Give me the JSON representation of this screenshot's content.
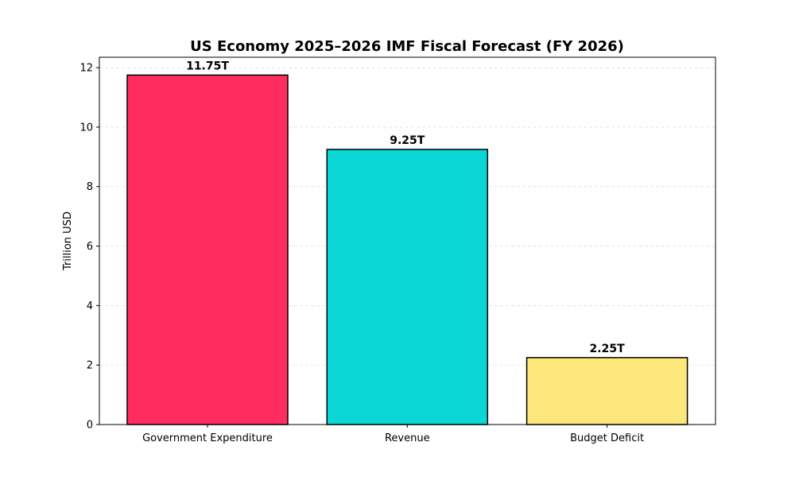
{
  "chart_data": {
    "type": "bar",
    "title": "US Economy 2025–2026 IMF Fiscal Forecast (FY 2026)",
    "xlabel": "",
    "ylabel": "Trillion USD",
    "categories": [
      "Government Expenditure",
      "Revenue",
      "Budget Deficit"
    ],
    "values": [
      11.75,
      9.25,
      2.25
    ],
    "data_labels": [
      "11.75T",
      "9.25T",
      "2.25T"
    ],
    "colors": [
      "#FF2D5F",
      "#0BD8D6",
      "#FCE77D"
    ],
    "edge_color": "#000000",
    "ylim": [
      0,
      12.35
    ],
    "yticks": [
      0,
      2,
      4,
      6,
      8,
      10,
      12
    ],
    "grid": "y-dashed",
    "legend": "none"
  }
}
